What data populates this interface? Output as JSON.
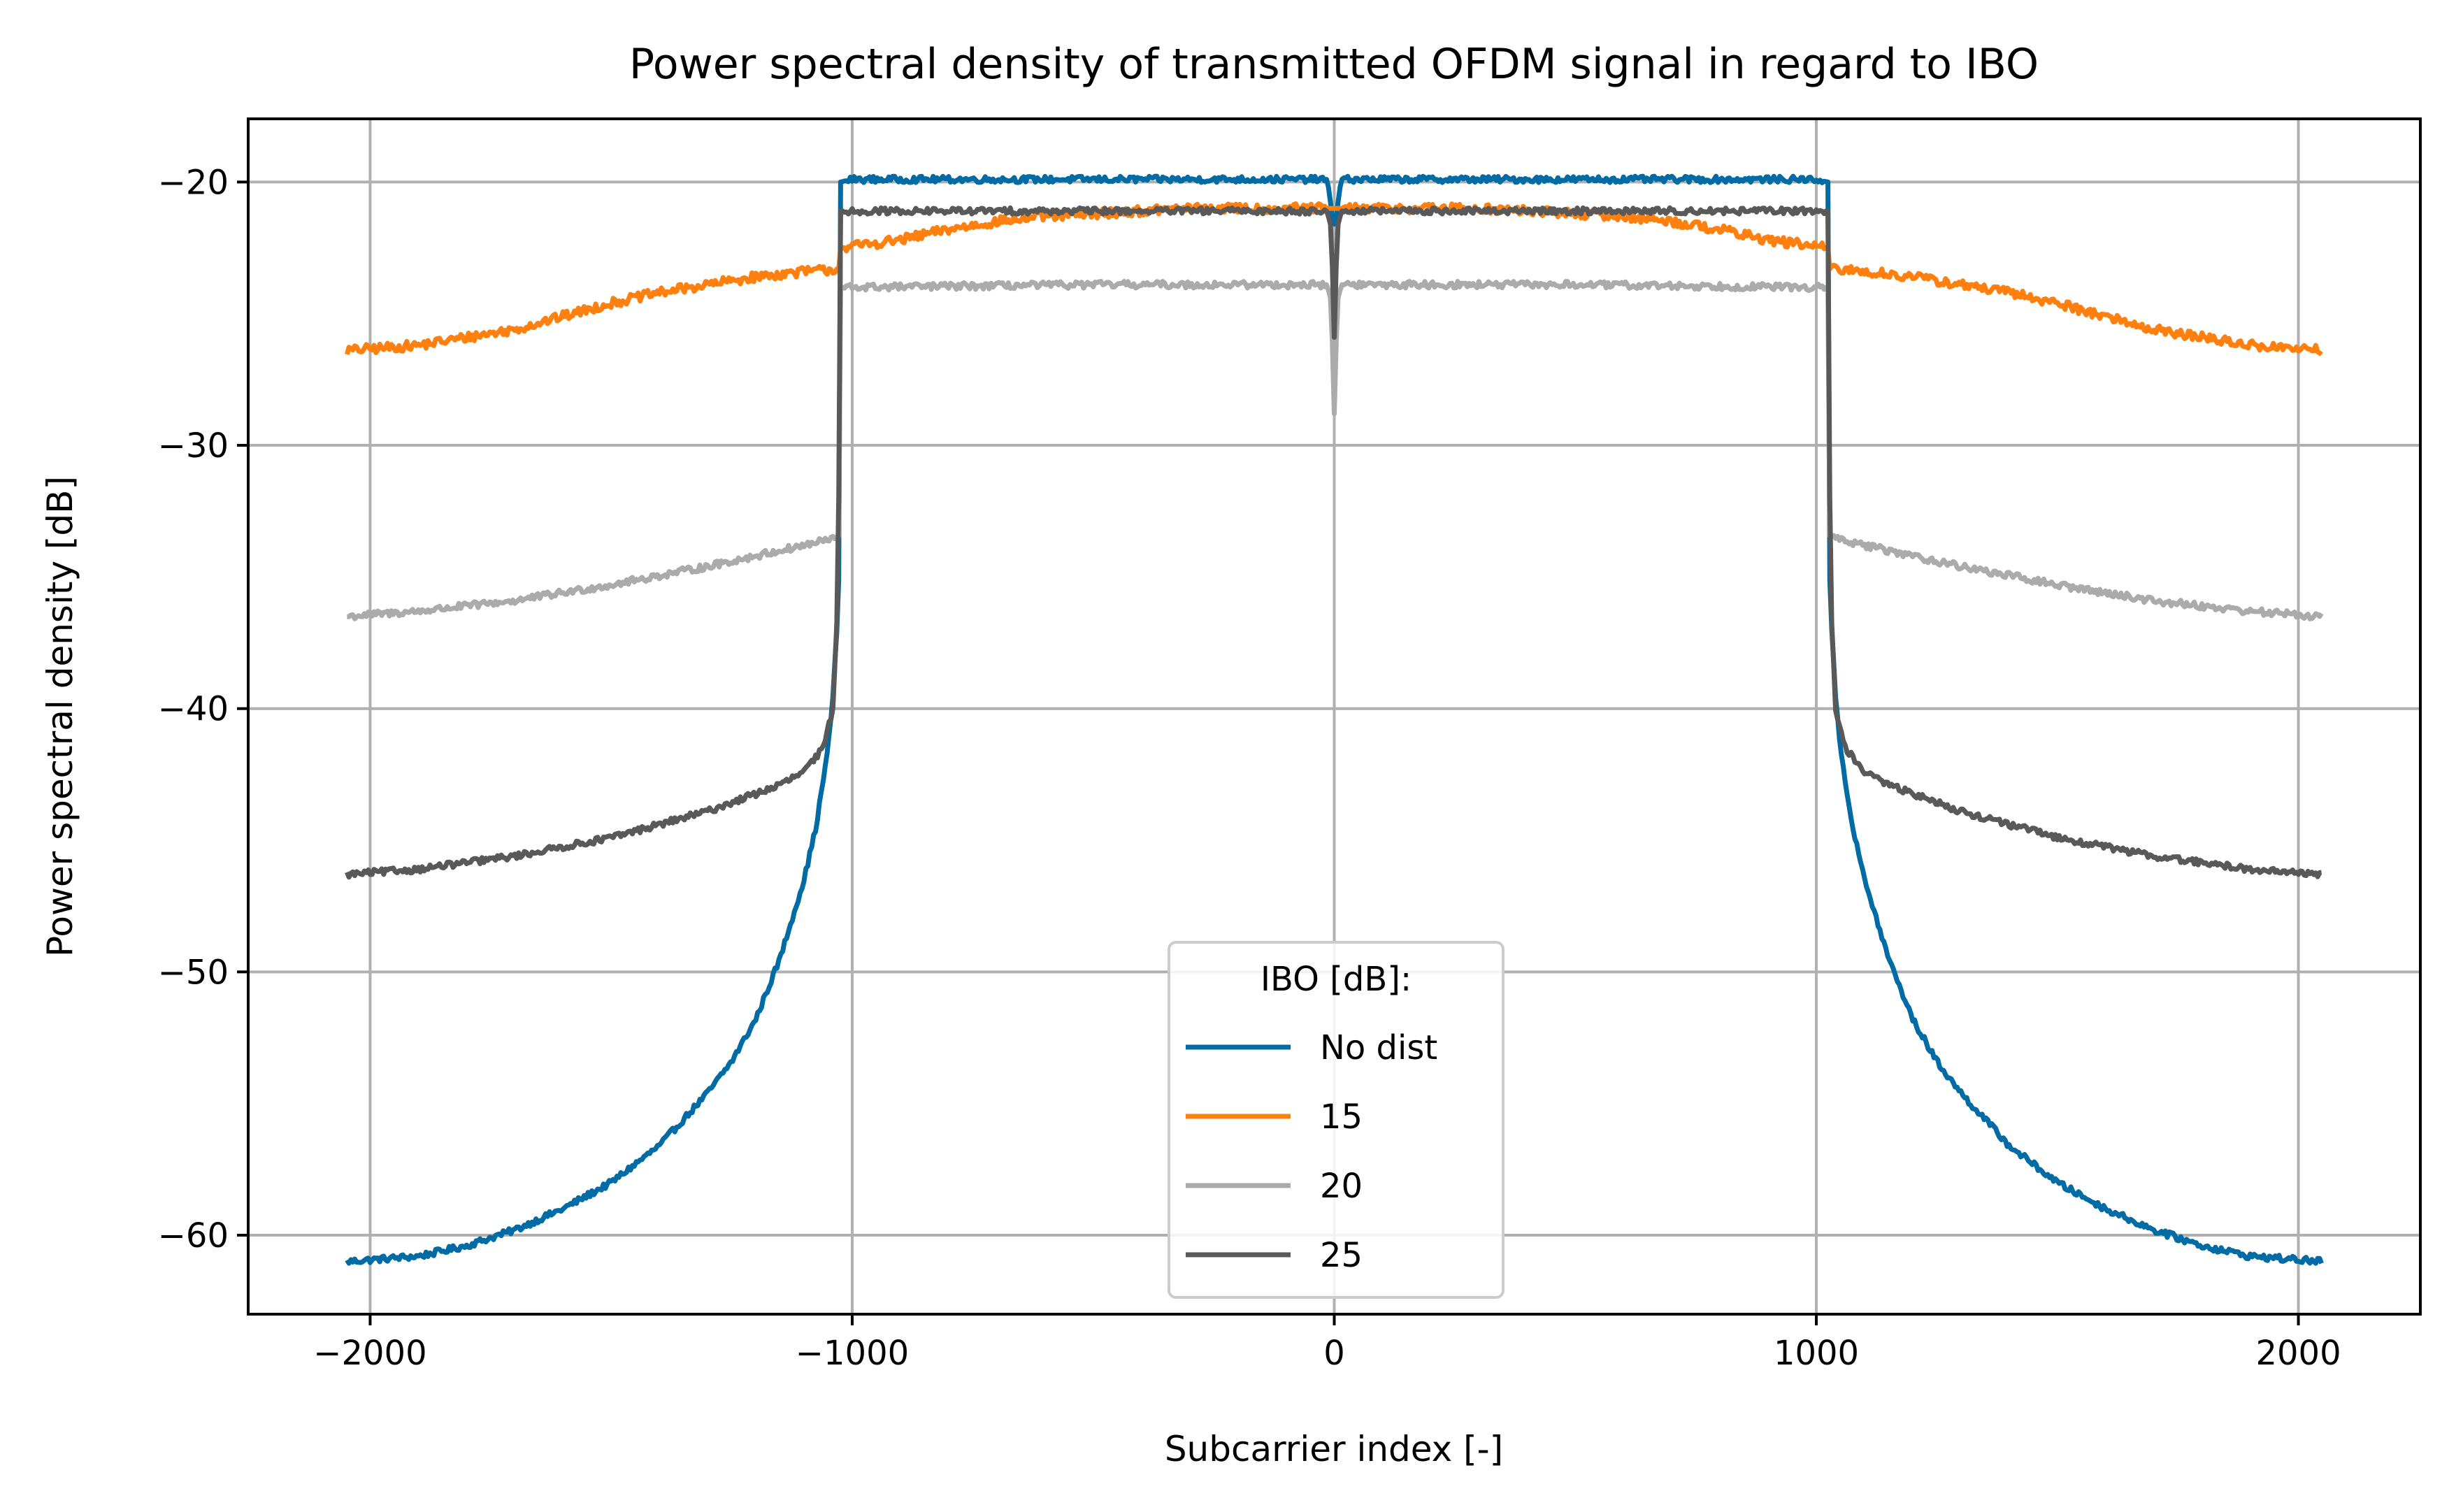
{
  "chart_data": {
    "type": "line",
    "title": "Power spectral density of transmitted OFDM signal in regard to IBO",
    "xlabel": "Subcarrier index [-]",
    "ylabel": "Power spectral density [dB]",
    "xlim": [
      -2253,
      2253
    ],
    "ylim": [
      -63.0,
      -17.6
    ],
    "xticks": [
      -2000,
      -1000,
      0,
      1000,
      2000
    ],
    "xtick_labels": [
      "−2000",
      "−1000",
      "0",
      "1000",
      "2000"
    ],
    "yticks": [
      -60,
      -50,
      -40,
      -30,
      -20
    ],
    "ytick_labels": [
      "−60",
      "−50",
      "−40",
      "−30",
      "−20"
    ],
    "grid": true,
    "legend": {
      "title": "IBO [dB]:",
      "placement": "lower center"
    },
    "series": [
      {
        "name": "No dist",
        "color": "#006ba4",
        "noise": 0.12,
        "x": [
          -2048,
          -1900,
          -1800,
          -1700,
          -1600,
          -1500,
          -1400,
          -1300,
          -1250,
          -1200,
          -1150,
          -1100,
          -1075,
          -1050,
          -1040,
          -1030,
          -1025,
          -1024,
          -1000,
          -500,
          -15,
          -10,
          -5,
          0,
          5,
          10,
          15,
          500,
          1000,
          1024,
          1025,
          1030,
          1040,
          1050,
          1075,
          1100,
          1150,
          1200,
          1250,
          1300,
          1400,
          1500,
          1600,
          1700,
          1800,
          1900,
          2048
        ],
        "y": [
          -61.0,
          -60.8,
          -60.4,
          -59.8,
          -59.0,
          -58.0,
          -56.6,
          -54.6,
          -53.4,
          -51.8,
          -49.5,
          -46.5,
          -44.5,
          -41.5,
          -39.5,
          -36.5,
          -33.0,
          -20.0,
          -19.9,
          -19.9,
          -19.9,
          -20.4,
          -21.3,
          -21.6,
          -21.3,
          -20.4,
          -19.9,
          -19.9,
          -19.9,
          -20.0,
          -33.0,
          -36.5,
          -39.5,
          -41.5,
          -44.5,
          -46.5,
          -49.5,
          -51.8,
          -53.4,
          -54.6,
          -56.6,
          -58.0,
          -59.0,
          -59.8,
          -60.4,
          -60.8,
          -61.0
        ]
      },
      {
        "name": "15",
        "color": "#ff800e",
        "noise": 0.18,
        "x": [
          -2048,
          -1900,
          -1800,
          -1700,
          -1600,
          -1500,
          -1400,
          -1300,
          -1200,
          -1100,
          -1025,
          -1024,
          -900,
          -800,
          -700,
          -600,
          -500,
          -400,
          -300,
          -200,
          -100,
          0,
          100,
          200,
          300,
          400,
          500,
          600,
          700,
          800,
          900,
          1024,
          1025,
          1100,
          1200,
          1300,
          1400,
          1500,
          1600,
          1700,
          1800,
          1900,
          2048
        ],
        "y": [
          -26.4,
          -26.2,
          -25.9,
          -25.6,
          -25.1,
          -24.6,
          -24.2,
          -23.9,
          -23.6,
          -23.4,
          -23.3,
          -22.5,
          -22.2,
          -21.8,
          -21.5,
          -21.3,
          -21.2,
          -21.1,
          -21.0,
          -21.0,
          -21.0,
          -21.0,
          -21.0,
          -21.0,
          -21.0,
          -21.1,
          -21.2,
          -21.3,
          -21.5,
          -21.8,
          -22.2,
          -22.5,
          -23.3,
          -23.4,
          -23.6,
          -23.9,
          -24.2,
          -24.6,
          -25.1,
          -25.6,
          -25.9,
          -26.2,
          -26.4
        ]
      },
      {
        "name": "20",
        "color": "#ababab",
        "noise": 0.13,
        "x": [
          -2048,
          -1900,
          -1700,
          -1500,
          -1300,
          -1100,
          -1030,
          -1026,
          -1025,
          -1024,
          -1000,
          -500,
          -15,
          -8,
          -3,
          0,
          3,
          8,
          15,
          500,
          1000,
          1024,
          1025,
          1026,
          1030,
          1100,
          1300,
          1500,
          1700,
          1900,
          2048
        ],
        "y": [
          -36.5,
          -36.3,
          -35.9,
          -35.3,
          -34.6,
          -33.8,
          -33.5,
          -33.4,
          -30.0,
          -24.0,
          -24.0,
          -23.9,
          -23.9,
          -24.4,
          -26.5,
          -28.8,
          -26.5,
          -24.4,
          -23.9,
          -23.9,
          -24.0,
          -24.0,
          -30.0,
          -33.4,
          -33.5,
          -33.8,
          -34.6,
          -35.3,
          -35.9,
          -36.3,
          -36.5
        ]
      },
      {
        "name": "25",
        "color": "#595959",
        "noise": 0.12,
        "x": [
          -2048,
          -1900,
          -1700,
          -1500,
          -1300,
          -1150,
          -1100,
          -1060,
          -1040,
          -1030,
          -1027,
          -1025,
          -1024,
          -1000,
          -500,
          -15,
          -8,
          -3,
          0,
          3,
          8,
          15,
          500,
          1000,
          1024,
          1025,
          1027,
          1030,
          1040,
          1060,
          1100,
          1150,
          1300,
          1500,
          1700,
          1900,
          2048
        ],
        "y": [
          -46.3,
          -46.1,
          -45.6,
          -44.9,
          -43.9,
          -42.9,
          -42.4,
          -41.5,
          -40.0,
          -36.0,
          -30.0,
          -23.0,
          -21.1,
          -21.1,
          -21.1,
          -21.1,
          -21.6,
          -23.6,
          -25.9,
          -23.6,
          -21.6,
          -21.1,
          -21.1,
          -21.1,
          -21.1,
          -23.0,
          -30.0,
          -36.0,
          -40.0,
          -41.5,
          -42.4,
          -42.9,
          -43.9,
          -44.9,
          -45.6,
          -46.1,
          -46.3
        ]
      }
    ]
  }
}
